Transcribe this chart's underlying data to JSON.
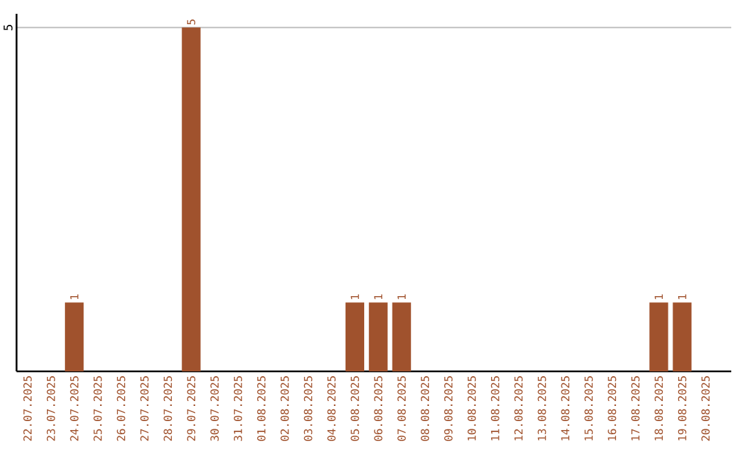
{
  "chart_data": {
    "type": "bar",
    "categories": [
      "22.07.2025",
      "23.07.2025",
      "24.07.2025",
      "25.07.2025",
      "26.07.2025",
      "27.07.2025",
      "28.07.2025",
      "29.07.2025",
      "30.07.2025",
      "31.07.2025",
      "01.08.2025",
      "02.08.2025",
      "03.08.2025",
      "04.08.2025",
      "05.08.2025",
      "06.08.2025",
      "07.08.2025",
      "08.08.2025",
      "09.08.2025",
      "10.08.2025",
      "11.08.2025",
      "12.08.2025",
      "13.08.2025",
      "14.08.2025",
      "15.08.2025",
      "16.08.2025",
      "17.08.2025",
      "18.08.2025",
      "19.08.2025",
      "20.08.2025"
    ],
    "values": [
      0,
      0,
      1,
      0,
      0,
      0,
      0,
      5,
      0,
      0,
      0,
      0,
      0,
      0,
      1,
      1,
      1,
      0,
      0,
      0,
      0,
      0,
      0,
      0,
      0,
      0,
      0,
      1,
      1,
      0
    ],
    "value_labels": [
      null,
      null,
      "1",
      null,
      null,
      null,
      null,
      "5",
      null,
      null,
      null,
      null,
      null,
      null,
      "1",
      "1",
      "1",
      null,
      null,
      null,
      null,
      null,
      null,
      null,
      null,
      null,
      null,
      "1",
      "1",
      null
    ],
    "color": "#a0522d",
    "ylim": [
      0,
      5.2
    ],
    "yticks": [
      5
    ],
    "grid": "y"
  }
}
